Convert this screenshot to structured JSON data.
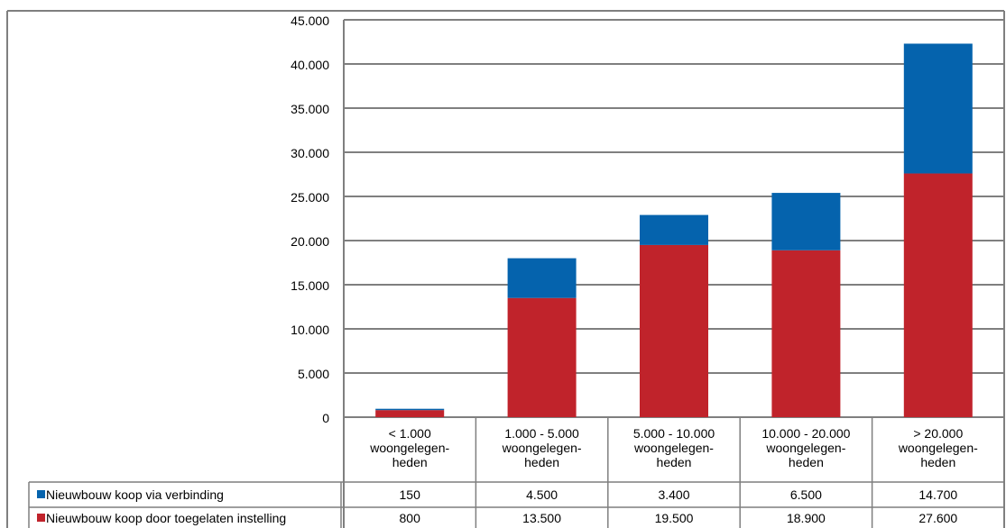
{
  "chart_data": {
    "type": "bar",
    "stacked": true,
    "categories": [
      [
        "< 1.000",
        "woongelegen-",
        "heden"
      ],
      [
        "1.000 - 5.000",
        "woongelegen-",
        "heden"
      ],
      [
        "5.000 - 10.000",
        "woongelegen-",
        "heden"
      ],
      [
        "10.000 - 20.000",
        "woongelegen-",
        "heden"
      ],
      [
        "> 20.000",
        "woongelegen-",
        "heden"
      ]
    ],
    "series": [
      {
        "name": "Nieuwbouw koop door toegelaten instelling",
        "color": "#c0232b",
        "values": [
          800,
          13500,
          19500,
          18900,
          27600
        ],
        "labels": [
          "800",
          "13.500",
          "19.500",
          "18.900",
          "27.600"
        ]
      },
      {
        "name": "Nieuwbouw koop via verbinding",
        "color": "#0563ad",
        "values": [
          150,
          4500,
          3400,
          6500,
          14700
        ],
        "labels": [
          "150",
          "4.500",
          "3.400",
          "6.500",
          "14.700"
        ]
      }
    ],
    "ylim": [
      0,
      45000
    ],
    "yticks": [
      0,
      5000,
      10000,
      15000,
      20000,
      25000,
      30000,
      35000,
      40000,
      45000
    ],
    "ytick_labels": [
      "0",
      "5.000",
      "10.000",
      "15.000",
      "20.000",
      "25.000",
      "30.000",
      "35.000",
      "40.000",
      "45.000"
    ],
    "grid": true,
    "legend": "data-table",
    "title": "",
    "xlabel": "",
    "ylabel": ""
  }
}
